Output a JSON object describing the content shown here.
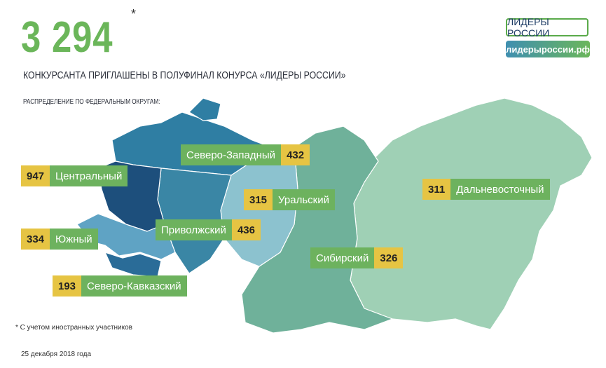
{
  "header": {
    "total": "3 294",
    "asterisk": "*",
    "subtitle": "КОНКУРСАНТА ПРИГЛАШЕНЫ В ПОЛУФИНАЛ КОНУРСА «ЛИДЕРЫ РОССИИ»",
    "distribution_label": "РАСПРЕДЕЛЕНИЕ ПО ФЕДЕРАЛЬНЫМ ОКРУГАМ:"
  },
  "logo": {
    "name": "ЛИДЕРЫ РОССИИ",
    "site": "лидерыроссии.рф"
  },
  "districts": [
    {
      "name": "Центральный",
      "value": "947",
      "color": "#1d4f7c"
    },
    {
      "name": "Северо-Западный",
      "value": "432",
      "color": "#2f7ea3"
    },
    {
      "name": "Уральский",
      "value": "315",
      "color": "#8cc2cf"
    },
    {
      "name": "Дальневосточный",
      "value": "311",
      "color": "#9fd0b5"
    },
    {
      "name": "Южный",
      "value": "334",
      "color": "#5fa3c4"
    },
    {
      "name": "Приволжский",
      "value": "436",
      "color": "#3a86a5"
    },
    {
      "name": "Сибирский",
      "value": "326",
      "color": "#6fb19a"
    },
    {
      "name": "Северо-Кавказский",
      "value": "193",
      "color": "#2a6c98"
    }
  ],
  "colors": {
    "accent_green": "#6bb65a",
    "badge_yellow": "#e6c443"
  },
  "footer": {
    "note": "* С учетом иностранных участников",
    "date": "25 декабря 2018 года"
  }
}
